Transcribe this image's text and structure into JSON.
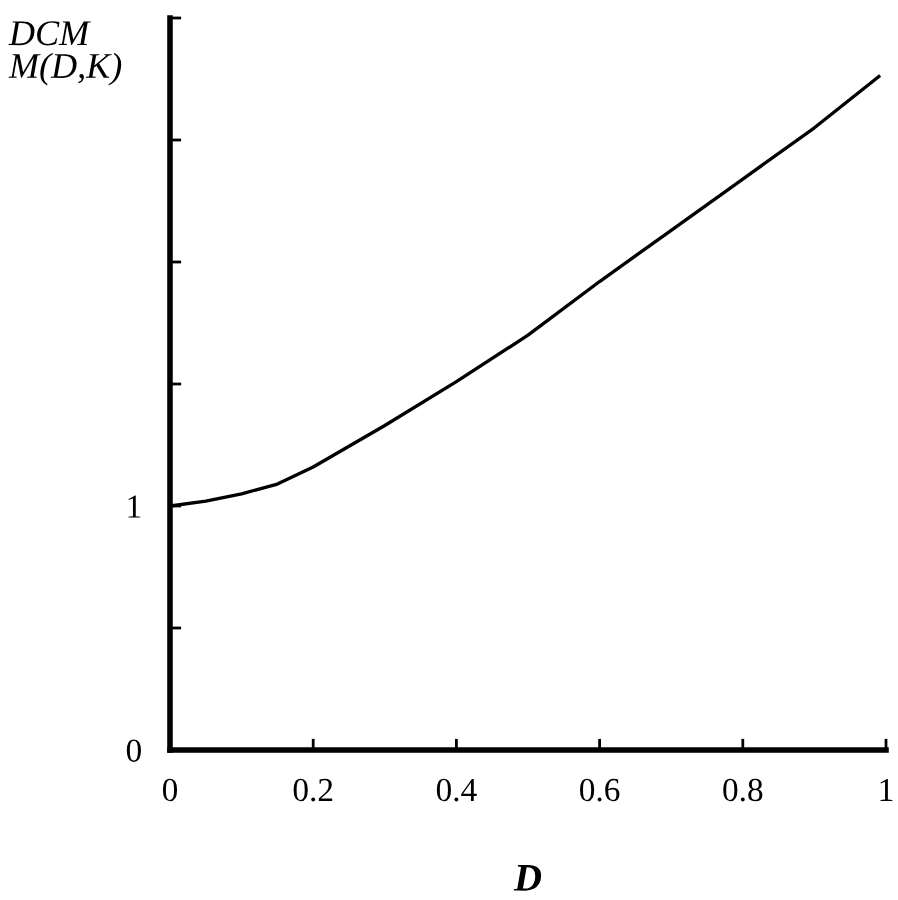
{
  "chart_data": {
    "type": "line",
    "xlabel": "D",
    "ylabel": "DCM\nM(D,K)",
    "x": [
      0,
      0.05,
      0.1,
      0.15,
      0.2,
      0.3,
      0.4,
      0.5,
      0.6,
      0.7,
      0.8,
      0.9,
      0.99
    ],
    "series": [
      {
        "color": "#000000",
        "values": [
          1.0,
          1.02,
          1.05,
          1.09,
          1.16,
          1.33,
          1.51,
          1.7,
          1.92,
          2.13,
          2.34,
          2.55,
          2.76
        ]
      }
    ],
    "xlim": [
      0,
      1
    ],
    "xticks": [
      0,
      0.2,
      0.4,
      0.6,
      0.8,
      1
    ],
    "ylim": [
      0,
      3
    ],
    "yticks": [
      0,
      {
        "value": 0.5,
        "label": null
      },
      1,
      {
        "value": 1.5,
        "label": null
      },
      {
        "value": 2,
        "label": null
      },
      {
        "value": 2.5,
        "label": null
      },
      {
        "value": 3,
        "label": null
      }
    ],
    "grid": false,
    "legend": false,
    "marker": "none",
    "line_style": "solid"
  }
}
